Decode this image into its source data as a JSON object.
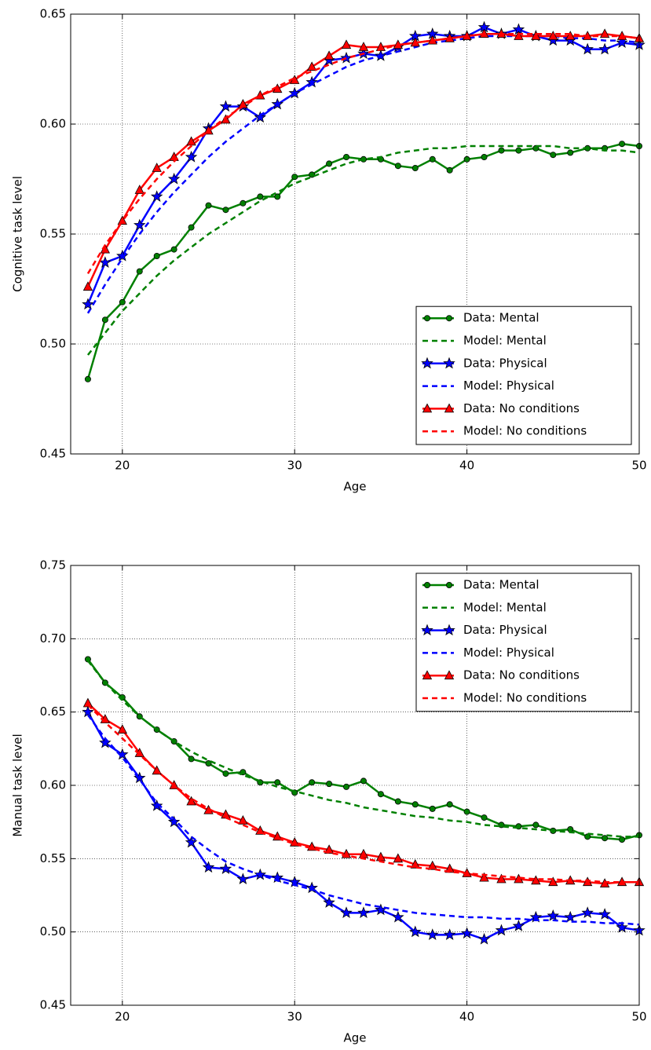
{
  "chart_data": [
    {
      "type": "line",
      "xlabel": "Age",
      "ylabel": "Cognitive task level",
      "x": [
        18,
        19,
        20,
        21,
        22,
        23,
        24,
        25,
        26,
        27,
        28,
        29,
        30,
        31,
        32,
        33,
        34,
        35,
        36,
        37,
        38,
        39,
        40,
        41,
        42,
        43,
        44,
        45,
        46,
        47,
        48,
        49,
        50
      ],
      "xlim": [
        17,
        50
      ],
      "ylim": [
        0.45,
        0.65
      ],
      "xticks": [
        20,
        30,
        40,
        50
      ],
      "yticks": [
        0.45,
        {
          "value": 0.5,
          "label": "0.50"
        },
        0.55,
        {
          "value": 0.6,
          "label": "0.60"
        },
        0.65
      ],
      "grid": true,
      "legend_loc": "lower right",
      "series": [
        {
          "name": "Data: Mental",
          "color": "#008000",
          "marker": "circle",
          "linestyle": "solid",
          "values": [
            0.484,
            0.511,
            0.519,
            0.533,
            0.54,
            0.543,
            0.553,
            0.563,
            0.561,
            0.564,
            0.567,
            0.567,
            0.576,
            0.577,
            0.582,
            0.585,
            0.584,
            0.584,
            0.581,
            0.58,
            0.584,
            0.579,
            0.584,
            0.585,
            0.588,
            0.588,
            0.589,
            0.586,
            0.587,
            0.589,
            0.589,
            0.591,
            0.59
          ]
        },
        {
          "name": "Model: Mental",
          "color": "#008000",
          "marker": "none",
          "linestyle": "dashed",
          "values": [
            0.495,
            0.505,
            0.515,
            0.523,
            0.531,
            0.538,
            0.544,
            0.55,
            0.555,
            0.56,
            0.565,
            0.569,
            0.573,
            0.576,
            0.579,
            0.582,
            0.584,
            0.585,
            0.587,
            0.588,
            0.589,
            0.589,
            0.59,
            0.59,
            0.59,
            0.59,
            0.59,
            0.59,
            0.589,
            0.589,
            0.588,
            0.588,
            0.587
          ]
        },
        {
          "name": "Data: Physical",
          "color": "#0000ff",
          "marker": "star",
          "linestyle": "solid",
          "values": [
            0.518,
            0.537,
            0.54,
            0.554,
            0.567,
            0.575,
            0.585,
            0.598,
            0.608,
            0.608,
            0.603,
            0.609,
            0.614,
            0.619,
            0.629,
            0.63,
            0.632,
            0.631,
            0.635,
            0.64,
            0.641,
            0.64,
            0.64,
            0.644,
            0.641,
            0.643,
            0.64,
            0.638,
            0.638,
            0.634,
            0.634,
            0.637,
            0.636
          ]
        },
        {
          "name": "Model: Physical",
          "color": "#0000ff",
          "marker": "none",
          "linestyle": "dashed",
          "values": [
            0.514,
            0.527,
            0.539,
            0.55,
            0.56,
            0.569,
            0.577,
            0.585,
            0.592,
            0.598,
            0.604,
            0.609,
            0.614,
            0.618,
            0.622,
            0.626,
            0.629,
            0.631,
            0.633,
            0.635,
            0.637,
            0.638,
            0.639,
            0.64,
            0.64,
            0.64,
            0.64,
            0.64,
            0.639,
            0.639,
            0.638,
            0.638,
            0.637
          ]
        },
        {
          "name": "Data: No conditions",
          "color": "#ff0000",
          "marker": "triangle",
          "linestyle": "solid",
          "values": [
            0.526,
            0.543,
            0.556,
            0.57,
            0.58,
            0.585,
            0.592,
            0.597,
            0.602,
            0.609,
            0.613,
            0.616,
            0.62,
            0.626,
            0.631,
            0.636,
            0.635,
            0.635,
            0.636,
            0.637,
            0.638,
            0.639,
            0.64,
            0.641,
            0.641,
            0.64,
            0.64,
            0.64,
            0.64,
            0.64,
            0.641,
            0.64,
            0.639
          ]
        },
        {
          "name": "Model: No conditions",
          "color": "#ff0000",
          "marker": "none",
          "linestyle": "dashed",
          "values": [
            0.532,
            0.545,
            0.556,
            0.566,
            0.575,
            0.583,
            0.59,
            0.597,
            0.603,
            0.608,
            0.613,
            0.617,
            0.621,
            0.624,
            0.627,
            0.63,
            0.632,
            0.634,
            0.636,
            0.637,
            0.638,
            0.639,
            0.64,
            0.641,
            0.641,
            0.641,
            0.641,
            0.641,
            0.641,
            0.64,
            0.64,
            0.64,
            0.639
          ]
        }
      ]
    },
    {
      "type": "line",
      "xlabel": "Age",
      "ylabel": "Manual task level",
      "x": [
        18,
        19,
        20,
        21,
        22,
        23,
        24,
        25,
        26,
        27,
        28,
        29,
        30,
        31,
        32,
        33,
        34,
        35,
        36,
        37,
        38,
        39,
        40,
        41,
        42,
        43,
        44,
        45,
        46,
        47,
        48,
        49,
        50
      ],
      "xlim": [
        17,
        50
      ],
      "ylim": [
        0.45,
        0.75
      ],
      "xticks": [
        20,
        30,
        40,
        50
      ],
      "yticks": [
        0.45,
        {
          "value": 0.5,
          "label": "0.50"
        },
        0.55,
        {
          "value": 0.6,
          "label": "0.60"
        },
        0.65,
        {
          "value": 0.7,
          "label": "0.70"
        },
        0.75
      ],
      "grid": true,
      "legend_loc": "upper right",
      "series": [
        {
          "name": "Data: Mental",
          "color": "#008000",
          "marker": "circle",
          "linestyle": "solid",
          "values": [
            0.686,
            0.67,
            0.66,
            0.647,
            0.638,
            0.63,
            0.618,
            0.615,
            0.608,
            0.609,
            0.602,
            0.602,
            0.595,
            0.602,
            0.601,
            0.599,
            0.603,
            0.594,
            0.589,
            0.587,
            0.584,
            0.587,
            0.582,
            0.578,
            0.573,
            0.572,
            0.573,
            0.569,
            0.57,
            0.565,
            0.564,
            0.563,
            0.566
          ]
        },
        {
          "name": "Model: Mental",
          "color": "#008000",
          "marker": "none",
          "linestyle": "dashed",
          "values": [
            0.685,
            0.67,
            0.658,
            0.647,
            0.638,
            0.63,
            0.623,
            0.617,
            0.612,
            0.607,
            0.603,
            0.599,
            0.596,
            0.593,
            0.59,
            0.588,
            0.585,
            0.583,
            0.581,
            0.579,
            0.578,
            0.576,
            0.575,
            0.573,
            0.572,
            0.571,
            0.57,
            0.569,
            0.568,
            0.567,
            0.566,
            0.565,
            0.565
          ]
        },
        {
          "name": "Data: Physical",
          "color": "#0000ff",
          "marker": "star",
          "linestyle": "solid",
          "values": [
            0.65,
            0.629,
            0.621,
            0.605,
            0.586,
            0.575,
            0.561,
            0.544,
            0.543,
            0.536,
            0.539,
            0.537,
            0.534,
            0.53,
            0.52,
            0.513,
            0.513,
            0.515,
            0.51,
            0.5,
            0.498,
            0.498,
            0.499,
            0.495,
            0.501,
            0.504,
            0.51,
            0.511,
            0.51,
            0.513,
            0.512,
            0.503,
            0.501
          ]
        },
        {
          "name": "Model: Physical",
          "color": "#0000ff",
          "marker": "none",
          "linestyle": "dashed",
          "values": [
            0.648,
            0.632,
            0.619,
            0.604,
            0.588,
            0.577,
            0.565,
            0.556,
            0.548,
            0.543,
            0.539,
            0.535,
            0.532,
            0.529,
            0.525,
            0.522,
            0.519,
            0.517,
            0.515,
            0.513,
            0.512,
            0.511,
            0.51,
            0.51,
            0.509,
            0.509,
            0.508,
            0.508,
            0.507,
            0.507,
            0.506,
            0.506,
            0.505
          ]
        },
        {
          "name": "Data: No conditions",
          "color": "#ff0000",
          "marker": "triangle",
          "linestyle": "solid",
          "values": [
            0.656,
            0.645,
            0.638,
            0.622,
            0.61,
            0.6,
            0.589,
            0.583,
            0.58,
            0.576,
            0.569,
            0.565,
            0.561,
            0.558,
            0.556,
            0.553,
            0.553,
            0.551,
            0.55,
            0.546,
            0.545,
            0.543,
            0.54,
            0.537,
            0.536,
            0.536,
            0.535,
            0.534,
            0.535,
            0.534,
            0.533,
            0.534,
            0.534
          ]
        },
        {
          "name": "Model: No conditions",
          "color": "#ff0000",
          "marker": "none",
          "linestyle": "dashed",
          "values": [
            0.655,
            0.643,
            0.632,
            0.621,
            0.61,
            0.6,
            0.591,
            0.584,
            0.578,
            0.573,
            0.568,
            0.564,
            0.56,
            0.557,
            0.554,
            0.552,
            0.55,
            0.548,
            0.546,
            0.544,
            0.543,
            0.541,
            0.54,
            0.539,
            0.538,
            0.537,
            0.536,
            0.536,
            0.535,
            0.535,
            0.534,
            0.534,
            0.534
          ]
        }
      ]
    }
  ]
}
